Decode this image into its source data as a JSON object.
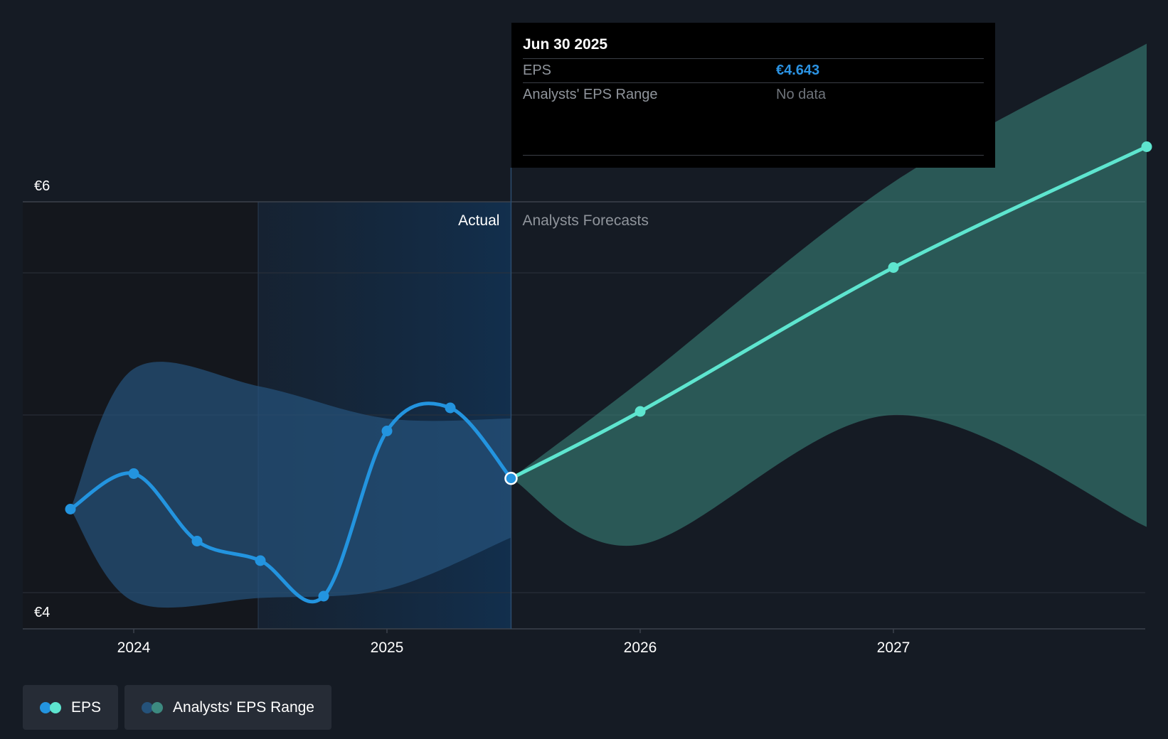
{
  "tooltip": {
    "date": "Jun 30 2025",
    "rows": [
      {
        "label": "EPS",
        "value": "€4.643"
      },
      {
        "label": "Analysts' EPS Range",
        "value": "No data"
      }
    ]
  },
  "legend": [
    {
      "label": "EPS",
      "colors": [
        "#2394df",
        "#5ee5cf"
      ]
    },
    {
      "label": "Analysts' EPS Range",
      "colors": [
        "#25527a",
        "#3d8a80"
      ]
    }
  ],
  "chart_data": {
    "type": "line",
    "ylim": [
      4,
      6
    ],
    "y_ticks": [
      {
        "value": 6,
        "label": "€6"
      },
      {
        "value": 4,
        "label": "€4"
      }
    ],
    "x_ticks": [
      {
        "value": 2024.0,
        "label": "2024"
      },
      {
        "value": 2025.0,
        "label": "2025"
      },
      {
        "value": 2026.0,
        "label": "2026"
      },
      {
        "value": 2027.0,
        "label": "2027"
      }
    ],
    "sections": {
      "actual_label": "Actual",
      "forecast_label": "Analysts Forecasts",
      "divider_x": 2025.49
    },
    "grid": true,
    "legend_position": "bottom-left",
    "series": [
      {
        "name": "EPS",
        "color": "#2394df",
        "x": [
          2023.75,
          2024.0,
          2024.25,
          2024.5,
          2024.75,
          2025.0,
          2025.25,
          2025.49
        ],
        "y": [
          4.47,
          4.67,
          4.29,
          4.18,
          3.98,
          4.91,
          5.04,
          4.643
        ]
      },
      {
        "name": "EPS",
        "color": "#5ee5cf",
        "x": [
          2025.49,
          2026.0,
          2027.0,
          2028.0
        ],
        "y": [
          4.643,
          5.02,
          5.83,
          6.51
        ]
      }
    ],
    "ranges": [
      {
        "name": "Analysts' EPS Range",
        "color": "#25527a",
        "x": [
          2023.75,
          2024.0,
          2024.5,
          2025.0,
          2025.49
        ],
        "upper": [
          4.47,
          5.26,
          5.16,
          4.98,
          4.98
        ],
        "lower": [
          4.47,
          3.95,
          3.97,
          4.02,
          4.31
        ]
      },
      {
        "name": "Analysts' EPS Range",
        "color": "#3d8a80",
        "x": [
          2025.49,
          2026.0,
          2027.0,
          2028.0
        ],
        "upper": [
          4.643,
          5.19,
          6.31,
          7.09
        ],
        "lower": [
          4.643,
          4.27,
          5.0,
          4.37
        ]
      }
    ]
  }
}
